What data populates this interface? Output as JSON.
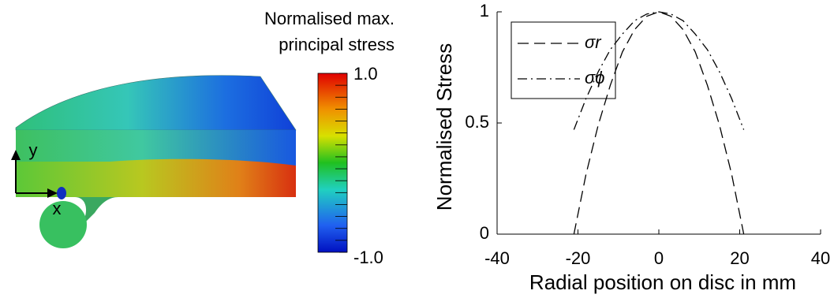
{
  "chart_data": [
    {
      "type": "colorbar",
      "colorbar_title": [
        "Normalised max.",
        "principal stress"
      ],
      "clim": [
        -1,
        1
      ],
      "cticks": [
        {
          "value": 1,
          "label": "1.0"
        },
        {
          "value": -1,
          "label": "-1.0"
        }
      ],
      "axis_labels": [
        "x",
        "y"
      ]
    },
    {
      "type": "line",
      "x_label": "Radial position on disc in mm",
      "y_label": "Normalised Stress",
      "x": [
        -21,
        -18,
        -15,
        -12,
        -9,
        -6,
        -3,
        0,
        3,
        6,
        9,
        12,
        15,
        18,
        21
      ],
      "series": [
        {
          "name": "σr",
          "color": "#000000",
          "dash": "dashed",
          "values": [
            0,
            0.27,
            0.49,
            0.67,
            0.82,
            0.92,
            0.98,
            1,
            0.98,
            0.92,
            0.82,
            0.67,
            0.49,
            0.27,
            0
          ]
        },
        {
          "name": "σϕ",
          "color": "#000000",
          "dash": "dashdot",
          "values": [
            0.47,
            0.61,
            0.73,
            0.83,
            0.9,
            0.96,
            0.99,
            1,
            0.99,
            0.96,
            0.9,
            0.83,
            0.73,
            0.61,
            0.47
          ]
        }
      ],
      "xlim": [
        -40,
        40
      ],
      "xticks": [
        -40,
        -20,
        0,
        20,
        40
      ],
      "ylim": [
        0,
        1
      ],
      "yticks": [
        0,
        0.5,
        1
      ],
      "legend": "upper left"
    }
  ]
}
